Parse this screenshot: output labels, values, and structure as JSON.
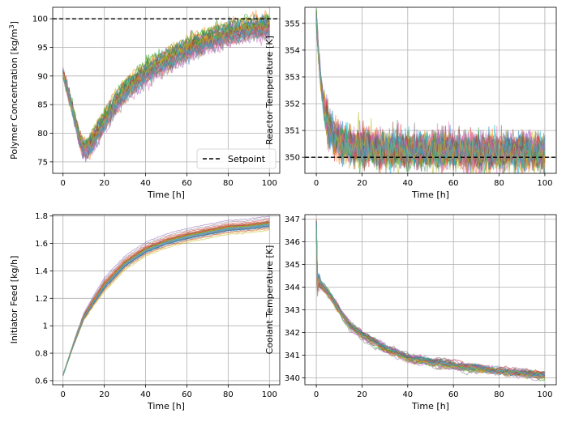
{
  "chart_data": [
    {
      "type": "line",
      "panel": "top-left",
      "title": "",
      "xlabel": "Time [h]",
      "ylabel_prefix": "Polymer Concentration [kg/m",
      "ylabel_sup": "3",
      "ylabel_suffix": "]",
      "xlim": [
        -5,
        105
      ],
      "ylim": [
        73,
        102
      ],
      "xticks": [
        0,
        20,
        40,
        60,
        80,
        100
      ],
      "yticks": [
        75,
        80,
        85,
        90,
        95,
        100
      ],
      "grid": true,
      "n_trajectories": 40,
      "mean_curve": {
        "x": [
          0,
          4,
          8,
          10,
          12,
          15,
          20,
          25,
          30,
          40,
          50,
          60,
          70,
          80,
          90,
          100
        ],
        "y": [
          90.5,
          85,
          79,
          77.2,
          77.5,
          79,
          82,
          85,
          87.5,
          90.5,
          92.8,
          94.7,
          96.2,
          97.4,
          98.3,
          98.7
        ]
      },
      "spread": 1.5,
      "setpoint": {
        "label": "Setpoint",
        "value": 100,
        "style": "dashed",
        "color": "#000000"
      },
      "legend_location": "lower-right"
    },
    {
      "type": "line",
      "panel": "top-right",
      "xlabel": "Time [h]",
      "ylabel": "Reactor Temperature [K]",
      "xlim": [
        -5,
        105
      ],
      "ylim": [
        349.4,
        355.6
      ],
      "xticks": [
        0,
        20,
        40,
        60,
        80,
        100
      ],
      "yticks": [
        350,
        351,
        352,
        353,
        354,
        355
      ],
      "grid": true,
      "n_trajectories": 40,
      "mean_curve": {
        "x": [
          0,
          0.5,
          1,
          2,
          3,
          4,
          5,
          6,
          8,
          10,
          12,
          15,
          20,
          30,
          40,
          60,
          80,
          100
        ],
        "y": [
          355.2,
          354.5,
          353.8,
          352.8,
          352.1,
          351.6,
          351.3,
          351.05,
          350.8,
          350.6,
          350.5,
          350.4,
          350.35,
          350.3,
          350.25,
          350.25,
          350.2,
          350.2
        ]
      },
      "spread": 0.35,
      "setpoint": {
        "value": 350,
        "style": "dashed",
        "color": "#000000"
      }
    },
    {
      "type": "line",
      "panel": "bottom-left",
      "xlabel": "Time [h]",
      "ylabel": "Initiator Feed [kg/h]",
      "xlim": [
        -5,
        105
      ],
      "ylim": [
        0.57,
        1.81
      ],
      "xticks": [
        0,
        20,
        40,
        60,
        80,
        100
      ],
      "yticks": [
        0.6,
        0.8,
        1.0,
        1.2,
        1.4,
        1.6,
        1.8
      ],
      "grid": true,
      "n_trajectories": 40,
      "mean_curve": {
        "x": [
          0,
          5,
          10,
          15,
          20,
          30,
          40,
          50,
          60,
          70,
          80,
          90,
          100
        ],
        "y": [
          0.64,
          0.86,
          1.06,
          1.18,
          1.29,
          1.45,
          1.55,
          1.61,
          1.65,
          1.68,
          1.71,
          1.72,
          1.74
        ]
      },
      "spread": 0.04
    },
    {
      "type": "line",
      "panel": "bottom-right",
      "xlabel": "Time [h]",
      "ylabel": "Coolant Temperature [K]",
      "xlim": [
        -5,
        105
      ],
      "ylim": [
        339.7,
        347.2
      ],
      "xticks": [
        0,
        20,
        40,
        60,
        80,
        100
      ],
      "yticks": [
        340,
        341,
        342,
        343,
        344,
        345,
        346,
        347
      ],
      "grid": true,
      "n_trajectories": 40,
      "mean_curve": {
        "x": [
          0,
          0.3,
          1,
          2,
          5,
          10,
          15,
          20,
          30,
          40,
          50,
          60,
          70,
          80,
          90,
          100
        ],
        "y": [
          346.8,
          344.0,
          344.3,
          344.1,
          343.8,
          343.0,
          342.3,
          341.9,
          341.3,
          340.9,
          340.7,
          340.55,
          340.42,
          340.3,
          340.2,
          340.1
        ]
      },
      "spread": 0.15
    }
  ],
  "colors": [
    "#1f77b4",
    "#ff7f0e",
    "#2ca02c",
    "#d62728",
    "#9467bd",
    "#8c564b",
    "#e377c2",
    "#7f7f7f",
    "#bcbd22",
    "#17becf"
  ]
}
